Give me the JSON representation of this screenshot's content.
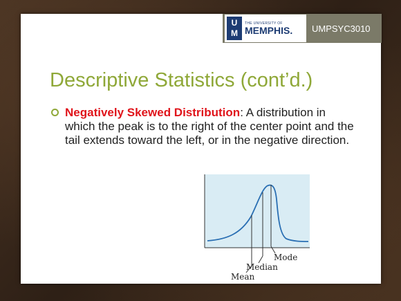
{
  "header": {
    "logo_small": "THE UNIVERSITY OF",
    "logo_big": "MEMPHIS.",
    "logo_mark_top": "U",
    "logo_mark_bottom": "M",
    "course_code": "UMPSYC3010"
  },
  "slide": {
    "title": "Descriptive Statistics (cont’d.)",
    "bullet": {
      "term": "Negatively Skewed Distribution",
      "definition": ": A distribution in which the peak is to the right of the center point and the tail extends toward the left, or in the negative direction."
    }
  },
  "figure": {
    "labels": {
      "mode": "Mode",
      "median": "Median",
      "mean": "Mean"
    },
    "colors": {
      "panel": "#d9ecf4",
      "curve": "#2a6fb3"
    }
  },
  "colors": {
    "title": "#8fa838",
    "term": "#e0141b",
    "badge": "#7b7a68",
    "logo": "#1d3c73"
  }
}
